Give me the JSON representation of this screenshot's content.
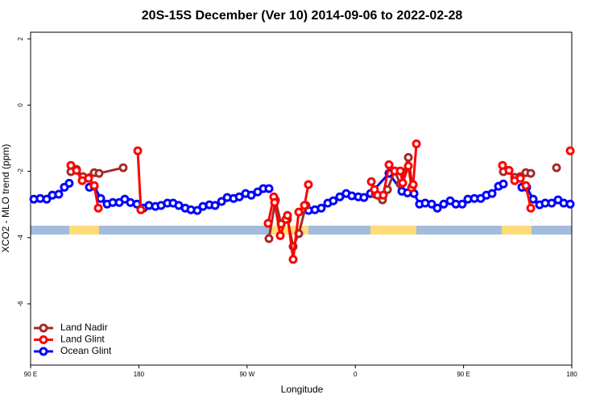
{
  "chart_data": {
    "type": "line",
    "title": "20S-15S December (Ver 10)   2014-09-06 to 2022-02-28",
    "xlabel": "Longitude",
    "ylabel": "XCO2 - MLO trend (ppm)",
    "xlim": [
      90,
      540
    ],
    "ylim": [
      -7.85,
      2.2
    ],
    "xticks": [
      {
        "value": 90,
        "label": "90 E"
      },
      180,
      {
        "value": 270,
        "label": "90 W"
      },
      {
        "value": 360,
        "label": "0"
      },
      {
        "value": 450,
        "label": "90 E"
      },
      {
        "value": 540,
        "label": "180"
      }
    ],
    "yticks": [
      2,
      0,
      -2,
      -4,
      -6
    ],
    "legend": "bottom-left",
    "series": [
      {
        "name": "Land Nadir",
        "color": "#a52a2a",
        "x": [
          123.5,
          128.2,
          133.5,
          142.9,
          146.9,
          167.0,
          null,
          288.2,
          293.6,
          298.3,
          303.6,
          308.3,
          313.0,
          319.0,
          null,
          376.6,
          382.6,
          386.7,
          392.7,
          397.4,
          404.1,
          407.4,
          null,
          483.1,
          487.8,
          492.5,
          497.2,
          501.8,
          505.9,
          null,
          527.3
        ],
        "values": [
          -2.01,
          -1.94,
          -2.16,
          -2.04,
          -2.06,
          -1.89,
          null,
          -4.03,
          -2.87,
          -3.59,
          -3.45,
          -4.27,
          -3.88,
          -3.03,
          null,
          -2.69,
          -2.86,
          -2.55,
          -1.99,
          -2.38,
          -1.58,
          -2.45,
          null,
          -2.01,
          -1.97,
          -2.18,
          -2.16,
          -2.04,
          -2.06,
          null,
          -1.89
        ]
      },
      {
        "name": "Land Glint",
        "color": "#ff0000",
        "x": [
          123.5,
          128.2,
          132.9,
          138.2,
          142.9,
          146.3,
          null,
          179.1,
          181.7,
          null,
          287.5,
          292.2,
          292.9,
          297.6,
          302.3,
          303.6,
          308.3,
          313.0,
          317.7,
          321.0,
          null,
          373.3,
          375.9,
          378.6,
          383.3,
          388.0,
          392.7,
          397.4,
          399.4,
          404.1,
          406.8,
          408.1,
          410.8,
          null,
          482.4,
          487.8,
          492.5,
          497.2,
          501.8,
          505.9,
          null,
          538.7
        ],
        "values": [
          -1.82,
          -1.97,
          -2.28,
          -2.21,
          -2.43,
          -3.11,
          null,
          -1.38,
          -3.16,
          null,
          -3.57,
          -2.77,
          -2.94,
          -3.94,
          -3.45,
          -3.33,
          -4.66,
          -3.23,
          -3.03,
          -2.4,
          null,
          -2.31,
          -2.55,
          -2.72,
          -2.72,
          -1.8,
          -1.99,
          -1.99,
          -2.35,
          -1.84,
          -2.5,
          -2.4,
          -1.17,
          null,
          -1.82,
          -1.97,
          -2.28,
          -2.21,
          -2.43,
          -3.11,
          null,
          -1.38
        ]
      },
      {
        "name": "Ocean Glint",
        "color": "#0000ff",
        "x": [
          92.7,
          98.0,
          103.4,
          108.1,
          113.4,
          118.1,
          122.1,
          null,
          138.9,
          142.9,
          148.3,
          153.6,
          158.3,
          163.7,
          168.3,
          173.0,
          178.4,
          183.8,
          188.4,
          193.8,
          198.5,
          203.8,
          208.5,
          213.2,
          218.6,
          223.3,
          228.6,
          233.3,
          238.7,
          243.4,
          248.8,
          253.5,
          258.8,
          263.5,
          268.8,
          273.5,
          278.8,
          283.5,
          288.2,
          null,
          321.1,
          326.4,
          331.7,
          337.1,
          341.7,
          347.1,
          352.4,
          357.1,
          362.5,
          367.2,
          372.6,
          388.0,
          398.7,
          403.4,
          408.8,
          413.4,
          418.1,
          423.5,
          428.2,
          433.5,
          438.9,
          443.6,
          448.9,
          453.6,
          459.0,
          464.3,
          469.0,
          473.7,
          479.1,
          483.1,
          null,
          498.5,
          502.5,
          507.9,
          513.2,
          517.9,
          523.3,
          528.6,
          533.3,
          538.7
        ],
        "values": [
          -2.84,
          -2.82,
          -2.84,
          -2.72,
          -2.69,
          -2.48,
          -2.36,
          null,
          -2.48,
          -2.45,
          -2.82,
          -2.99,
          -2.94,
          -2.94,
          -2.84,
          -2.94,
          -2.99,
          -3.11,
          -3.03,
          -3.06,
          -3.03,
          -2.96,
          -2.96,
          -3.03,
          -3.11,
          -3.16,
          -3.18,
          -3.06,
          -3.01,
          -3.03,
          -2.91,
          -2.79,
          -2.82,
          -2.77,
          -2.67,
          -2.72,
          -2.62,
          -2.52,
          -2.52,
          null,
          -3.18,
          -3.16,
          -3.11,
          -2.96,
          -2.89,
          -2.77,
          -2.67,
          -2.74,
          -2.77,
          -2.79,
          -2.67,
          -2.06,
          -2.6,
          -2.65,
          -2.67,
          -2.99,
          -2.96,
          -2.99,
          -3.11,
          -2.99,
          -2.89,
          -2.99,
          -2.99,
          -2.84,
          -2.82,
          -2.82,
          -2.72,
          -2.67,
          -2.45,
          -2.38,
          null,
          -2.48,
          -2.48,
          -2.84,
          -3.01,
          -2.96,
          -2.96,
          -2.86,
          -2.96,
          -2.99
        ]
      }
    ]
  }
}
